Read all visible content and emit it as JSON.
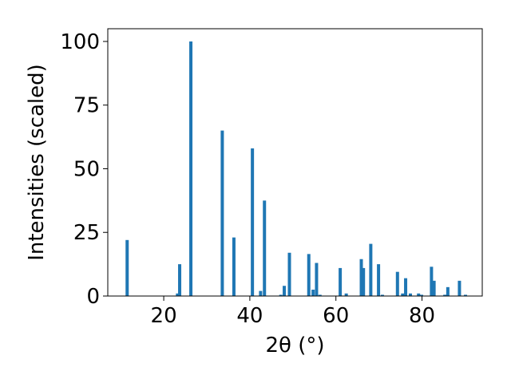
{
  "chart_data": {
    "type": "bar",
    "xlabel": "2θ (°)",
    "ylabel": "Intensities (scaled)",
    "xlim": [
      7,
      94
    ],
    "ylim": [
      0,
      105
    ],
    "x_ticks": [
      20,
      40,
      60,
      80
    ],
    "y_ticks": [
      0,
      25,
      50,
      75,
      100
    ],
    "grid": false,
    "bar_color": "#1f77b4",
    "bars": [
      {
        "x": 11.5,
        "y": 22
      },
      {
        "x": 23.2,
        "y": 1
      },
      {
        "x": 23.7,
        "y": 12.5
      },
      {
        "x": 26.3,
        "y": 100
      },
      {
        "x": 33.6,
        "y": 65
      },
      {
        "x": 36.3,
        "y": 23
      },
      {
        "x": 40.6,
        "y": 58
      },
      {
        "x": 42.5,
        "y": 2
      },
      {
        "x": 43.4,
        "y": 37.5
      },
      {
        "x": 47.2,
        "y": 0.5
      },
      {
        "x": 48.0,
        "y": 4
      },
      {
        "x": 49.2,
        "y": 17
      },
      {
        "x": 53.7,
        "y": 16.5
      },
      {
        "x": 54.7,
        "y": 2.5
      },
      {
        "x": 55.5,
        "y": 13
      },
      {
        "x": 56.3,
        "y": 0.5
      },
      {
        "x": 61.0,
        "y": 11
      },
      {
        "x": 62.4,
        "y": 1
      },
      {
        "x": 65.9,
        "y": 14.5
      },
      {
        "x": 66.4,
        "y": 11
      },
      {
        "x": 68.1,
        "y": 20.5
      },
      {
        "x": 69.9,
        "y": 12.5
      },
      {
        "x": 70.8,
        "y": 0.5
      },
      {
        "x": 74.3,
        "y": 9.5
      },
      {
        "x": 75.5,
        "y": 1
      },
      {
        "x": 76.2,
        "y": 7
      },
      {
        "x": 77.3,
        "y": 1
      },
      {
        "x": 79.2,
        "y": 1
      },
      {
        "x": 79.9,
        "y": 0.5
      },
      {
        "x": 82.2,
        "y": 11.5
      },
      {
        "x": 82.8,
        "y": 6
      },
      {
        "x": 85.3,
        "y": 0.5
      },
      {
        "x": 86.0,
        "y": 3.5
      },
      {
        "x": 88.7,
        "y": 6
      },
      {
        "x": 90.1,
        "y": 0.5
      }
    ]
  }
}
